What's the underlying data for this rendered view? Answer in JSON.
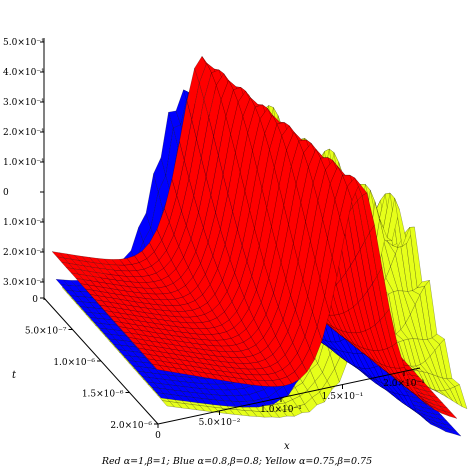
{
  "chart_data": {
    "type": "surface3d",
    "caption": "Red α=1,β=1; Blue α=0.8,β=0.8; Yellow α=0.75,β=0.75",
    "x_axis": {
      "label": "x",
      "range": [
        0,
        0.2
      ],
      "ticks": [
        "0",
        "5.0×10⁻²",
        "1.0×10⁻¹",
        "1.5×10⁻¹",
        "2.0×10⁻¹"
      ]
    },
    "t_axis": {
      "label": "t",
      "range": [
        0,
        2e-06
      ],
      "ticks": [
        "0",
        "5.0×10⁻⁷",
        "1.0×10⁻⁶",
        "1.5×10⁻⁶",
        "2.0×10⁻⁶"
      ]
    },
    "z_axis": {
      "ticks": [
        "5.0×10⁻¹",
        "4.0×10⁻¹",
        "3.0×10⁻¹",
        "2.0×10⁻¹",
        "1.0×10⁻¹",
        "0",
        "1.0×10⁻¹",
        "2.0×10⁻¹",
        "3.0×10⁻¹"
      ]
    },
    "series": [
      {
        "name": "Red",
        "alpha": 1,
        "beta": 1,
        "color": "#ff0000",
        "peak_x": 0.095,
        "peak_value": 0.5
      },
      {
        "name": "Blue",
        "alpha": 0.8,
        "beta": 0.8,
        "color": "#0000ff",
        "peak_x": 0.09,
        "peak_value": 0.45
      },
      {
        "name": "Yellow",
        "alpha": 0.75,
        "beta": 0.75,
        "color": "#e6ff1a",
        "peak_x": 0.12,
        "peak_value": 0.48
      }
    ],
    "grid": true
  }
}
